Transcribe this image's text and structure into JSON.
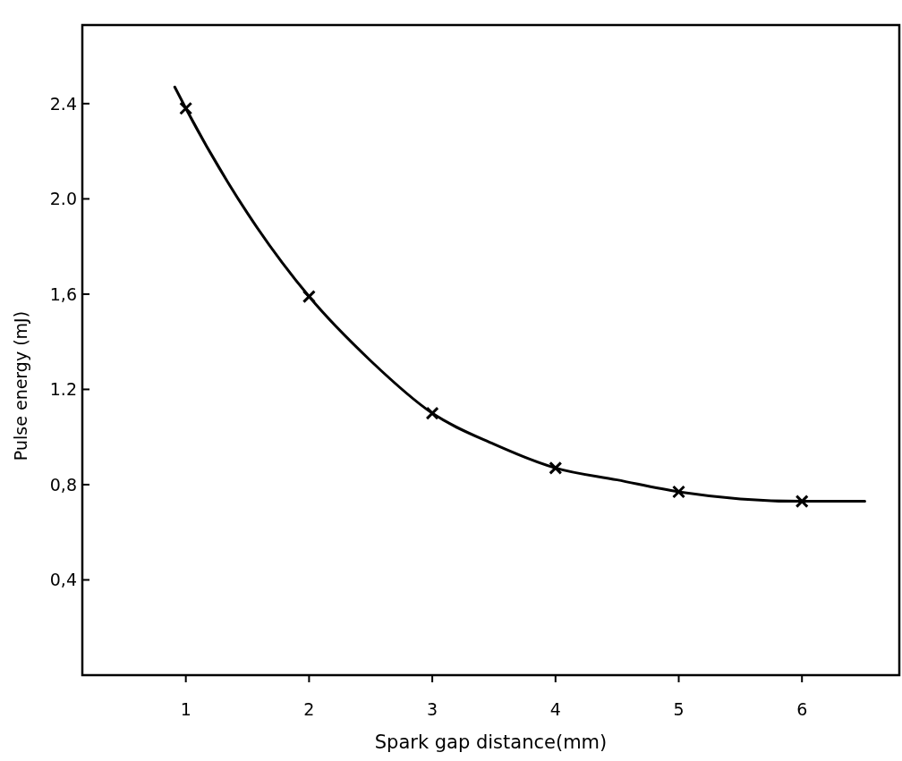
{
  "chart_data": {
    "type": "line",
    "xlabel": "Spark gap distance(mm)",
    "ylabel": "Pulse energy (mJ)",
    "xlim": [
      0.16,
      6.79
    ],
    "xticks": [
      1,
      2,
      3,
      4,
      5,
      6
    ],
    "ylim": [
      0,
      2.73
    ],
    "yticks": [
      {
        "value": 0.4,
        "label": "0,4"
      },
      {
        "value": 0.8,
        "label": "0,8"
      },
      {
        "value": 1.2,
        "label": "1.2"
      },
      {
        "value": 1.6,
        "label": "1,6"
      },
      {
        "value": 2.0,
        "label": "2.0"
      },
      {
        "value": 2.4,
        "label": "2.4"
      }
    ],
    "grid": false,
    "series": [
      {
        "type": "scatter",
        "marker": "cross",
        "color": "#000000",
        "x": [
          1,
          2,
          3,
          4,
          5,
          6
        ],
        "values": [
          2.38,
          1.59,
          1.1,
          0.87,
          0.77,
          0.73
        ]
      },
      {
        "marker": "none",
        "line_style": "solid",
        "color": "#000000",
        "x": [
          0.91,
          1,
          1.5,
          2,
          2.5,
          3,
          3.5,
          4,
          4.5,
          5,
          5.5,
          6,
          6.51
        ],
        "values": [
          2.47,
          2.38,
          1.94,
          1.59,
          1.32,
          1.1,
          0.97,
          0.87,
          0.82,
          0.77,
          0.74,
          0.73,
          0.73
        ]
      }
    ]
  }
}
